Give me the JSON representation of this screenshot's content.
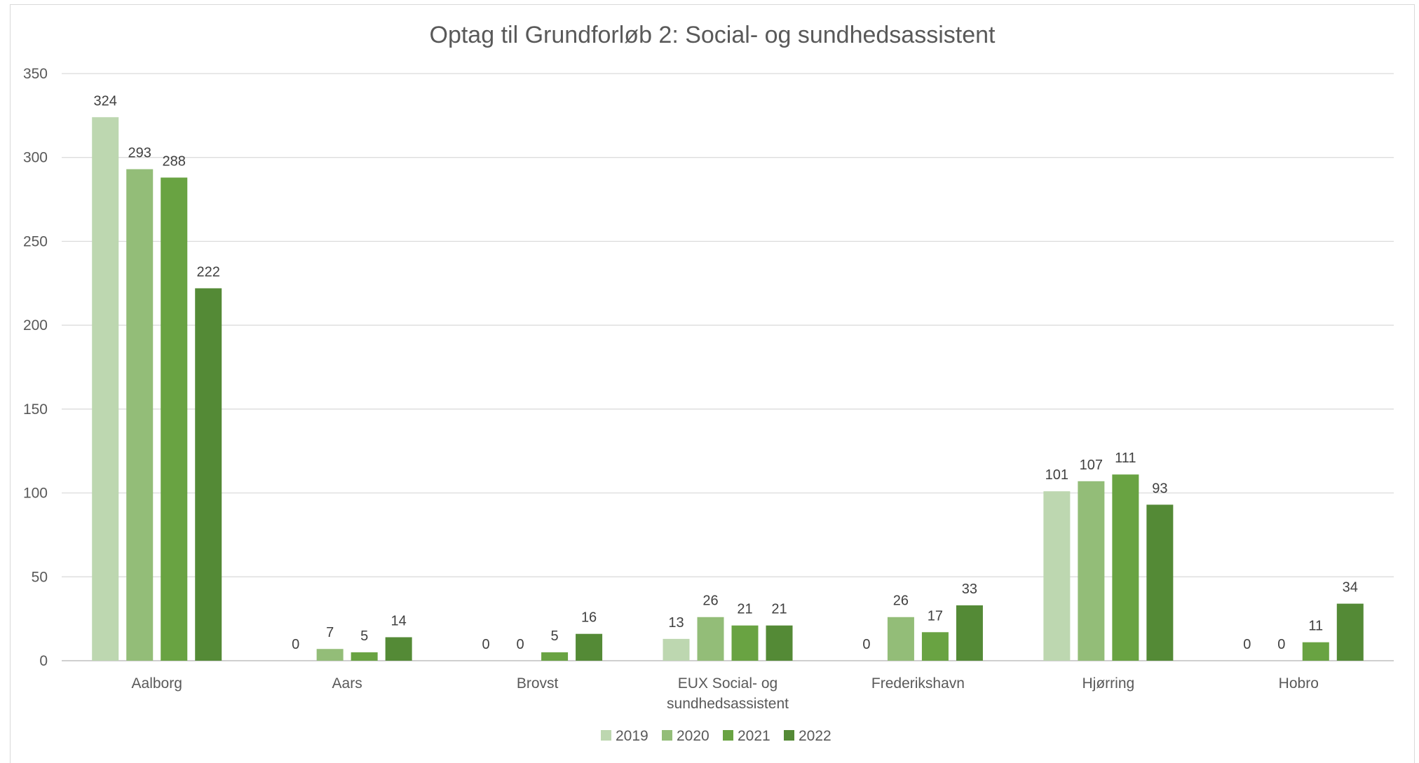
{
  "chart_data": {
    "type": "bar",
    "title": "Optag til Grundforløb 2: Social- og sundhedsassistent",
    "xlabel": "",
    "ylabel": "",
    "ylim": [
      0,
      350
    ],
    "yticks": [
      0,
      50,
      100,
      150,
      200,
      250,
      300,
      350
    ],
    "grid": true,
    "legend_position": "bottom",
    "categories": [
      [
        "Aalborg"
      ],
      [
        "Aars"
      ],
      [
        "Brovst"
      ],
      [
        "EUX Social- og",
        "sundhedsassistent"
      ],
      [
        "Frederikshavn"
      ],
      [
        "Hjørring"
      ],
      [
        "Hobro"
      ]
    ],
    "series": [
      {
        "name": "2019",
        "color": "#bdd7b0",
        "values": [
          324,
          0,
          0,
          13,
          0,
          101,
          0
        ]
      },
      {
        "name": "2020",
        "color": "#93bd78",
        "values": [
          293,
          7,
          0,
          26,
          26,
          107,
          0
        ]
      },
      {
        "name": "2021",
        "color": "#69a342",
        "values": [
          288,
          5,
          5,
          21,
          17,
          111,
          11
        ]
      },
      {
        "name": "2022",
        "color": "#548a36",
        "values": [
          222,
          14,
          16,
          21,
          33,
          93,
          34
        ]
      }
    ]
  }
}
